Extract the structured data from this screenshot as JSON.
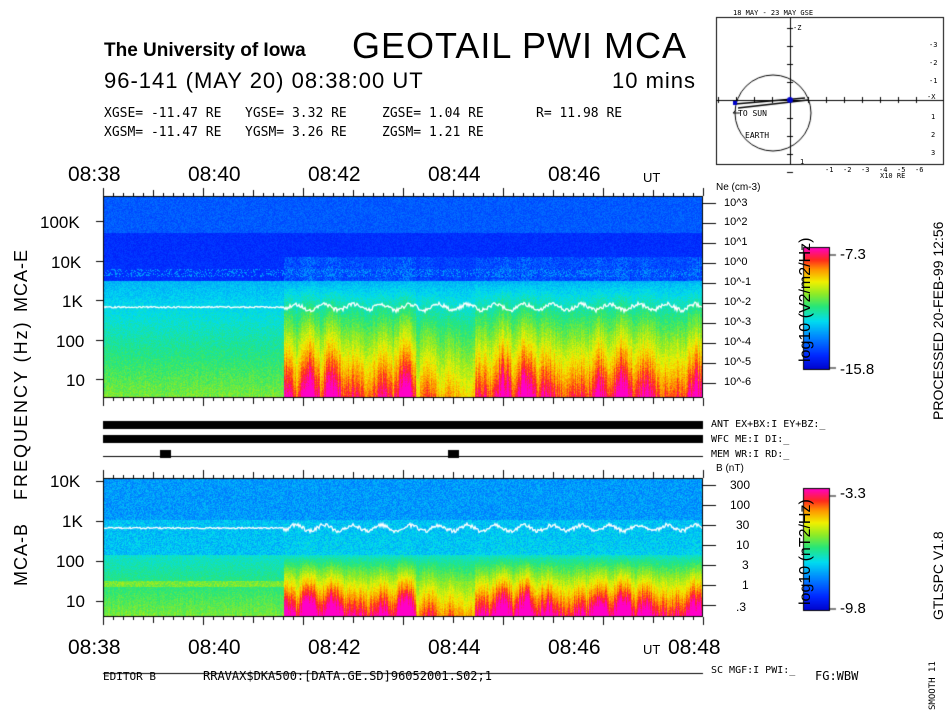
{
  "header": {
    "institution": "The University of Iowa",
    "title": "GEOTAIL  PWI  MCA",
    "date_line": "96-141  (MAY 20) 08:38:00 UT",
    "duration": "10 mins",
    "xgse": "XGSE= -11.47 RE",
    "ygse": "YGSE=   3.32 RE",
    "zgse": "ZGSE=   1.04 RE",
    "r": "R= 11.98 RE",
    "xgsm": "XGSM= -11.47 RE",
    "ygsm": "YGSM=   3.26 RE",
    "zgsm": "ZGSM=   1.21 RE"
  },
  "orbit": {
    "title": "18 MAY - 23 MAY  GSE",
    "sun": "TO SUN",
    "earth": "EARTH",
    "units": "X10 RE",
    "zlabel": "-Z",
    "xlabel": "-X",
    "x_ticks": [
      "1",
      "-1",
      "-2",
      "-3",
      "-4",
      "-5",
      "-6"
    ],
    "y_ticks": [
      "-3",
      "-2",
      "-1",
      "1",
      "2",
      "3"
    ]
  },
  "side": {
    "processed": "PROCESSED 20-FEB-99  12:56",
    "version": "GTLSPC  V1.8",
    "smooth": "SMOOTH 11",
    "freq_label": "FREQUENCY (Hz)",
    "mca_e": "MCA-E",
    "mca_b": "MCA-B"
  },
  "status": {
    "ant": "ANT EX+BX:I EY+BZ:_",
    "wfc": "WFC ME:I    DI:_",
    "mem": "MEM WR:I    RD:_",
    "sc": "SC MGF:I    PWI:_"
  },
  "footer": {
    "editor": "EDITOR B",
    "path": "RRAVAX$DKA500:[DATA.GE.SD]96052001.S02;1",
    "fg": "FG:WBW"
  },
  "chart_data": [
    {
      "type": "heatmap",
      "name": "MCA-E",
      "time_ticks": [
        "08:38",
        "08:40",
        "08:42",
        "08:44",
        "08:46"
      ],
      "time_unit": "UT",
      "time_range_min": [
        0,
        10
      ],
      "freq_ticks": [
        "100K",
        "10K",
        "1K",
        "100",
        "10"
      ],
      "freq_range_hz": [
        5.6,
        311000
      ],
      "ylabel": "FREQUENCY (Hz)",
      "density_label": "Ne (cm-3)",
      "density_ticks": [
        "10^3",
        "10^2",
        "10^1",
        "10^0",
        "10^-1",
        "10^-2",
        "10^-3",
        "10^-4",
        "10^-5",
        "10^-6"
      ],
      "colorbar_label": "log10 (V2/m2/Hz)",
      "colorbar_max": "-7.3",
      "colorbar_min": "-15.8",
      "event_onset_min": 3.0,
      "trace_freq_hz": 700
    },
    {
      "type": "heatmap",
      "name": "MCA-B",
      "time_ticks": [
        "08:38",
        "08:40",
        "08:42",
        "08:44",
        "08:46",
        "08:48"
      ],
      "time_unit": "UT",
      "time_range_min": [
        0,
        10
      ],
      "freq_ticks": [
        "10K",
        "1K",
        "100",
        "10"
      ],
      "freq_range_hz": [
        5.6,
        12000
      ],
      "bfield_label": "B (nT)",
      "bfield_ticks": [
        "300",
        "100",
        "30",
        "10",
        "3",
        "1",
        ".3"
      ],
      "colorbar_label": "log10 (nT2/Hz)",
      "colorbar_max": "-3.3",
      "colorbar_min": "-9.8",
      "event_onset_min": 3.0,
      "trace_freq_hz": 700
    }
  ],
  "mode_bars": {
    "mem_marks_min": [
      1.0,
      5.8
    ]
  }
}
